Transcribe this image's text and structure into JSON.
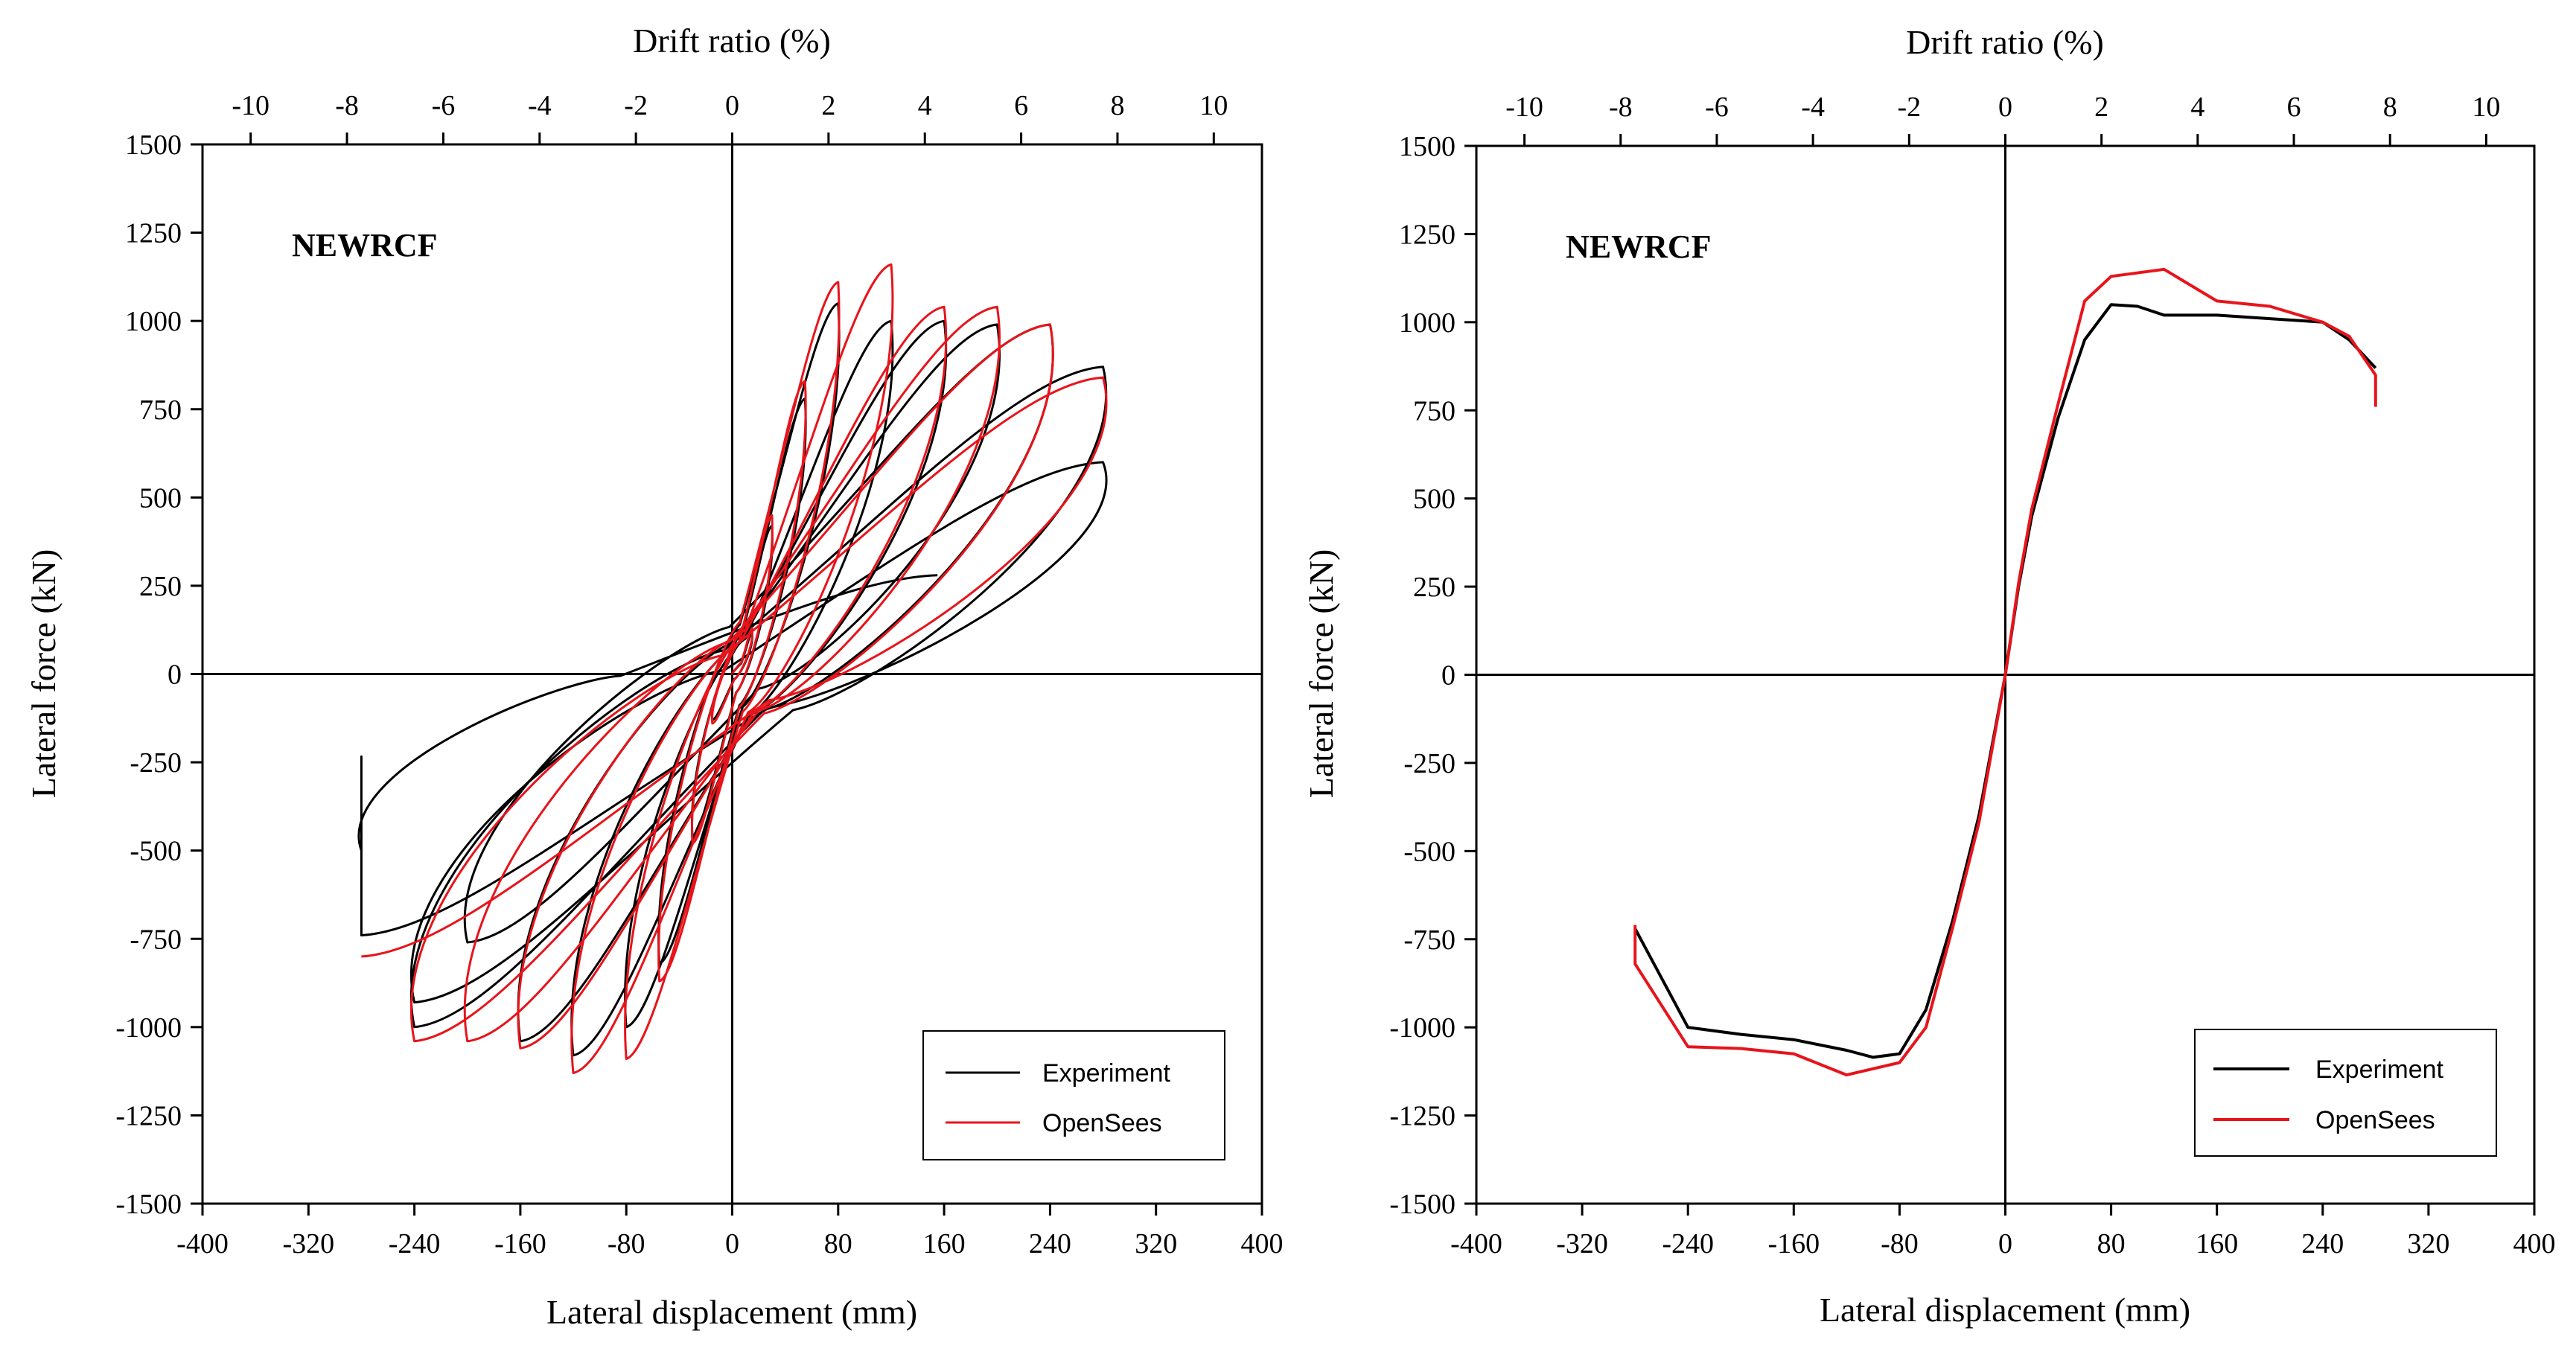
{
  "colors": {
    "experiment": "#000000",
    "opensees": "#e8141b",
    "axis": "#000000"
  },
  "chart_data": [
    {
      "type": "line",
      "title": "NEWRCF",
      "xlabel": "Lateral displacement (mm)",
      "ylabel": "Lateral force (kN)",
      "x2label": "Drift ratio (%)",
      "xlim": [
        -400,
        400
      ],
      "ylim": [
        -1500,
        1500
      ],
      "x2lim": [
        -11,
        11
      ],
      "xticks": [
        -400,
        -320,
        -240,
        -160,
        -80,
        0,
        80,
        160,
        240,
        320,
        400
      ],
      "yticks": [
        -1500,
        -1250,
        -1000,
        -750,
        -500,
        -250,
        0,
        250,
        500,
        750,
        1000,
        1250,
        1500
      ],
      "x2ticks": [
        -10,
        -8,
        -6,
        -4,
        -2,
        0,
        2,
        4,
        6,
        8,
        10
      ],
      "legend": [
        "Experiment",
        "OpenSees"
      ],
      "legend_position": "bottom-right",
      "series": [
        {
          "name": "Experiment",
          "type": "hysteresis",
          "peaks": [
            [
              15,
              120
            ],
            [
              -15,
              -130
            ],
            [
              30,
              420
            ],
            [
              -30,
              -460
            ],
            [
              55,
              780
            ],
            [
              -55,
              -820
            ],
            [
              80,
              1050
            ],
            [
              -80,
              -1000
            ],
            [
              120,
              1000
            ],
            [
              -120,
              -1080
            ],
            [
              160,
              1000
            ],
            [
              -160,
              -1040
            ],
            [
              200,
              990
            ],
            [
              -200,
              -760
            ],
            [
              240,
              990
            ],
            [
              -240,
              -1000
            ],
            [
              280,
              870
            ],
            [
              -240,
              -930
            ],
            [
              280,
              600
            ],
            [
              -280,
              -740
            ],
            [
              -280,
              -500
            ],
            [
              155,
              280
            ]
          ]
        },
        {
          "name": "OpenSees",
          "type": "hysteresis",
          "peaks": [
            [
              15,
              130
            ],
            [
              -15,
              -140
            ],
            [
              30,
              450
            ],
            [
              -30,
              -480
            ],
            [
              55,
              830
            ],
            [
              -55,
              -870
            ],
            [
              80,
              1110
            ],
            [
              -80,
              -1090
            ],
            [
              120,
              1160
            ],
            [
              -120,
              -1130
            ],
            [
              160,
              1040
            ],
            [
              -160,
              -1060
            ],
            [
              200,
              1040
            ],
            [
              -200,
              -1040
            ],
            [
              240,
              990
            ],
            [
              -240,
              -1040
            ],
            [
              280,
              840
            ],
            [
              -280,
              -800
            ]
          ]
        }
      ]
    },
    {
      "type": "line",
      "title": "NEWRCF",
      "xlabel": "Lateral displacement (mm)",
      "ylabel": "Lateral force (kN)",
      "x2label": "Drift ratio (%)",
      "xlim": [
        -400,
        400
      ],
      "ylim": [
        -1500,
        1500
      ],
      "x2lim": [
        -11,
        11
      ],
      "xticks": [
        -400,
        -320,
        -240,
        -160,
        -80,
        0,
        80,
        160,
        240,
        320,
        400
      ],
      "yticks": [
        -1500,
        -1250,
        -1000,
        -750,
        -500,
        -250,
        0,
        250,
        500,
        750,
        1000,
        1250,
        1500
      ],
      "x2ticks": [
        -10,
        -8,
        -6,
        -4,
        -2,
        0,
        2,
        4,
        6,
        8,
        10
      ],
      "legend": [
        "Experiment",
        "OpenSees"
      ],
      "legend_position": "bottom-right",
      "series": [
        {
          "name": "Experiment",
          "points": [
            [
              -280,
              -720
            ],
            [
              -240,
              -1000
            ],
            [
              -200,
              -1020
            ],
            [
              -160,
              -1035
            ],
            [
              -120,
              -1065
            ],
            [
              -100,
              -1085
            ],
            [
              -80,
              -1075
            ],
            [
              -60,
              -950
            ],
            [
              -40,
              -700
            ],
            [
              -20,
              -400
            ],
            [
              0,
              0
            ],
            [
              10,
              250
            ],
            [
              20,
              450
            ],
            [
              40,
              730
            ],
            [
              60,
              950
            ],
            [
              80,
              1050
            ],
            [
              100,
              1045
            ],
            [
              120,
              1020
            ],
            [
              160,
              1020
            ],
            [
              200,
              1010
            ],
            [
              240,
              1000
            ],
            [
              260,
              950
            ],
            [
              280,
              870
            ]
          ]
        },
        {
          "name": "OpenSees",
          "points": [
            [
              -280,
              -710
            ],
            [
              -280,
              -820
            ],
            [
              -240,
              -1055
            ],
            [
              -200,
              -1060
            ],
            [
              -160,
              -1075
            ],
            [
              -120,
              -1135
            ],
            [
              -80,
              -1100
            ],
            [
              -60,
              -1000
            ],
            [
              -40,
              -720
            ],
            [
              -20,
              -420
            ],
            [
              0,
              0
            ],
            [
              10,
              260
            ],
            [
              20,
              470
            ],
            [
              40,
              770
            ],
            [
              60,
              1060
            ],
            [
              80,
              1130
            ],
            [
              120,
              1150
            ],
            [
              160,
              1060
            ],
            [
              200,
              1045
            ],
            [
              240,
              1000
            ],
            [
              260,
              960
            ],
            [
              280,
              850
            ],
            [
              280,
              760
            ]
          ]
        }
      ]
    }
  ]
}
